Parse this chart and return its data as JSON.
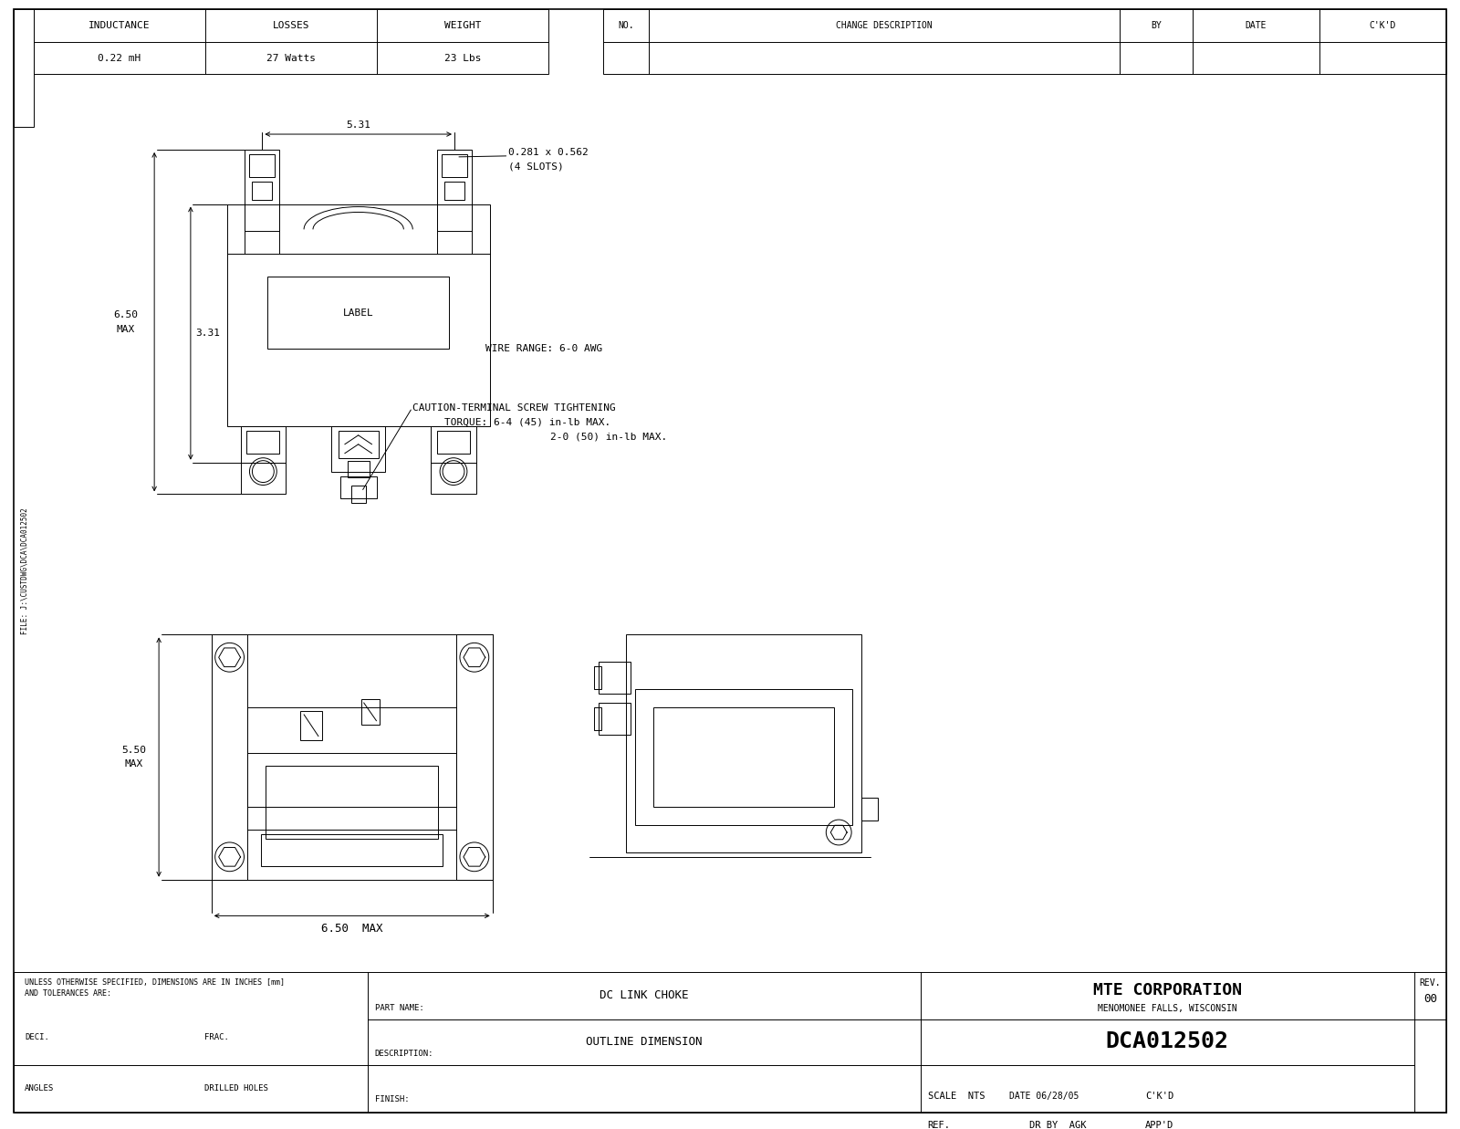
{
  "bg_color": "#ffffff",
  "line_color": "#000000",
  "top_table": {
    "inductance": "0.22 mH",
    "losses": "27 Watts",
    "weight": "23 Lbs"
  },
  "revision_table": {
    "headers": [
      "NO.",
      "CHANGE DESCRIPTION",
      "BY",
      "DATE",
      "C'K'D"
    ]
  },
  "title_block": {
    "company": "MTE CORPORATION",
    "location": "MENOMONEE FALLS, WISCONSIN",
    "part_name_label": "PART NAME:",
    "part_name": "DC LINK CHOKE",
    "description_label": "DESCRIPTION:",
    "description": "OUTLINE DIMENSION",
    "finish_label": "FINISH:",
    "drawing_number": "DCA012502",
    "rev_label": "REV.",
    "rev": "00",
    "scale_label": "SCALE",
    "scale": "NTS",
    "date_label": "DATE 06/28/05",
    "ckd_label": "C'K'D",
    "ref_label": "REF.",
    "dr_by_label": "DR BY",
    "dr_by": "AGK",
    "appd_label": "APP'D",
    "notes_line1": "UNLESS OTHERWISE SPECIFIED, DIMENSIONS ARE IN INCHES [mm]",
    "notes_line2": "AND TOLERANCES ARE:",
    "deci_label": "DECI.",
    "frac_label": "FRAC.",
    "angles_label": "ANGLES",
    "drilled_label": "DRILLED HOLES"
  },
  "front_view": {
    "dim_531": "5.31",
    "dim_331": "3.31",
    "dim_650_max_line1": "6.50",
    "dim_650_max_line2": "MAX",
    "slots_note_line1": "0.281 x 0.562",
    "slots_note_line2": "(4 SLOTS)",
    "wire_range": "WIRE RANGE: 6-0 AWG",
    "caution_line1": "CAUTION-TERMINAL SCREW TIGHTENING",
    "caution_line2": "TORQUE: 6-4 (45) in-lb MAX.",
    "caution_line3": "            2-0 (50) in-lb MAX."
  },
  "bottom_views": {
    "dim_550_max_line1": "5.50",
    "dim_550_max_line2": "MAX",
    "dim_650_max": "6.50  MAX"
  },
  "sidebar_text": "FILE: J:\\CUSTDWG\\DCA\\DCA012502"
}
